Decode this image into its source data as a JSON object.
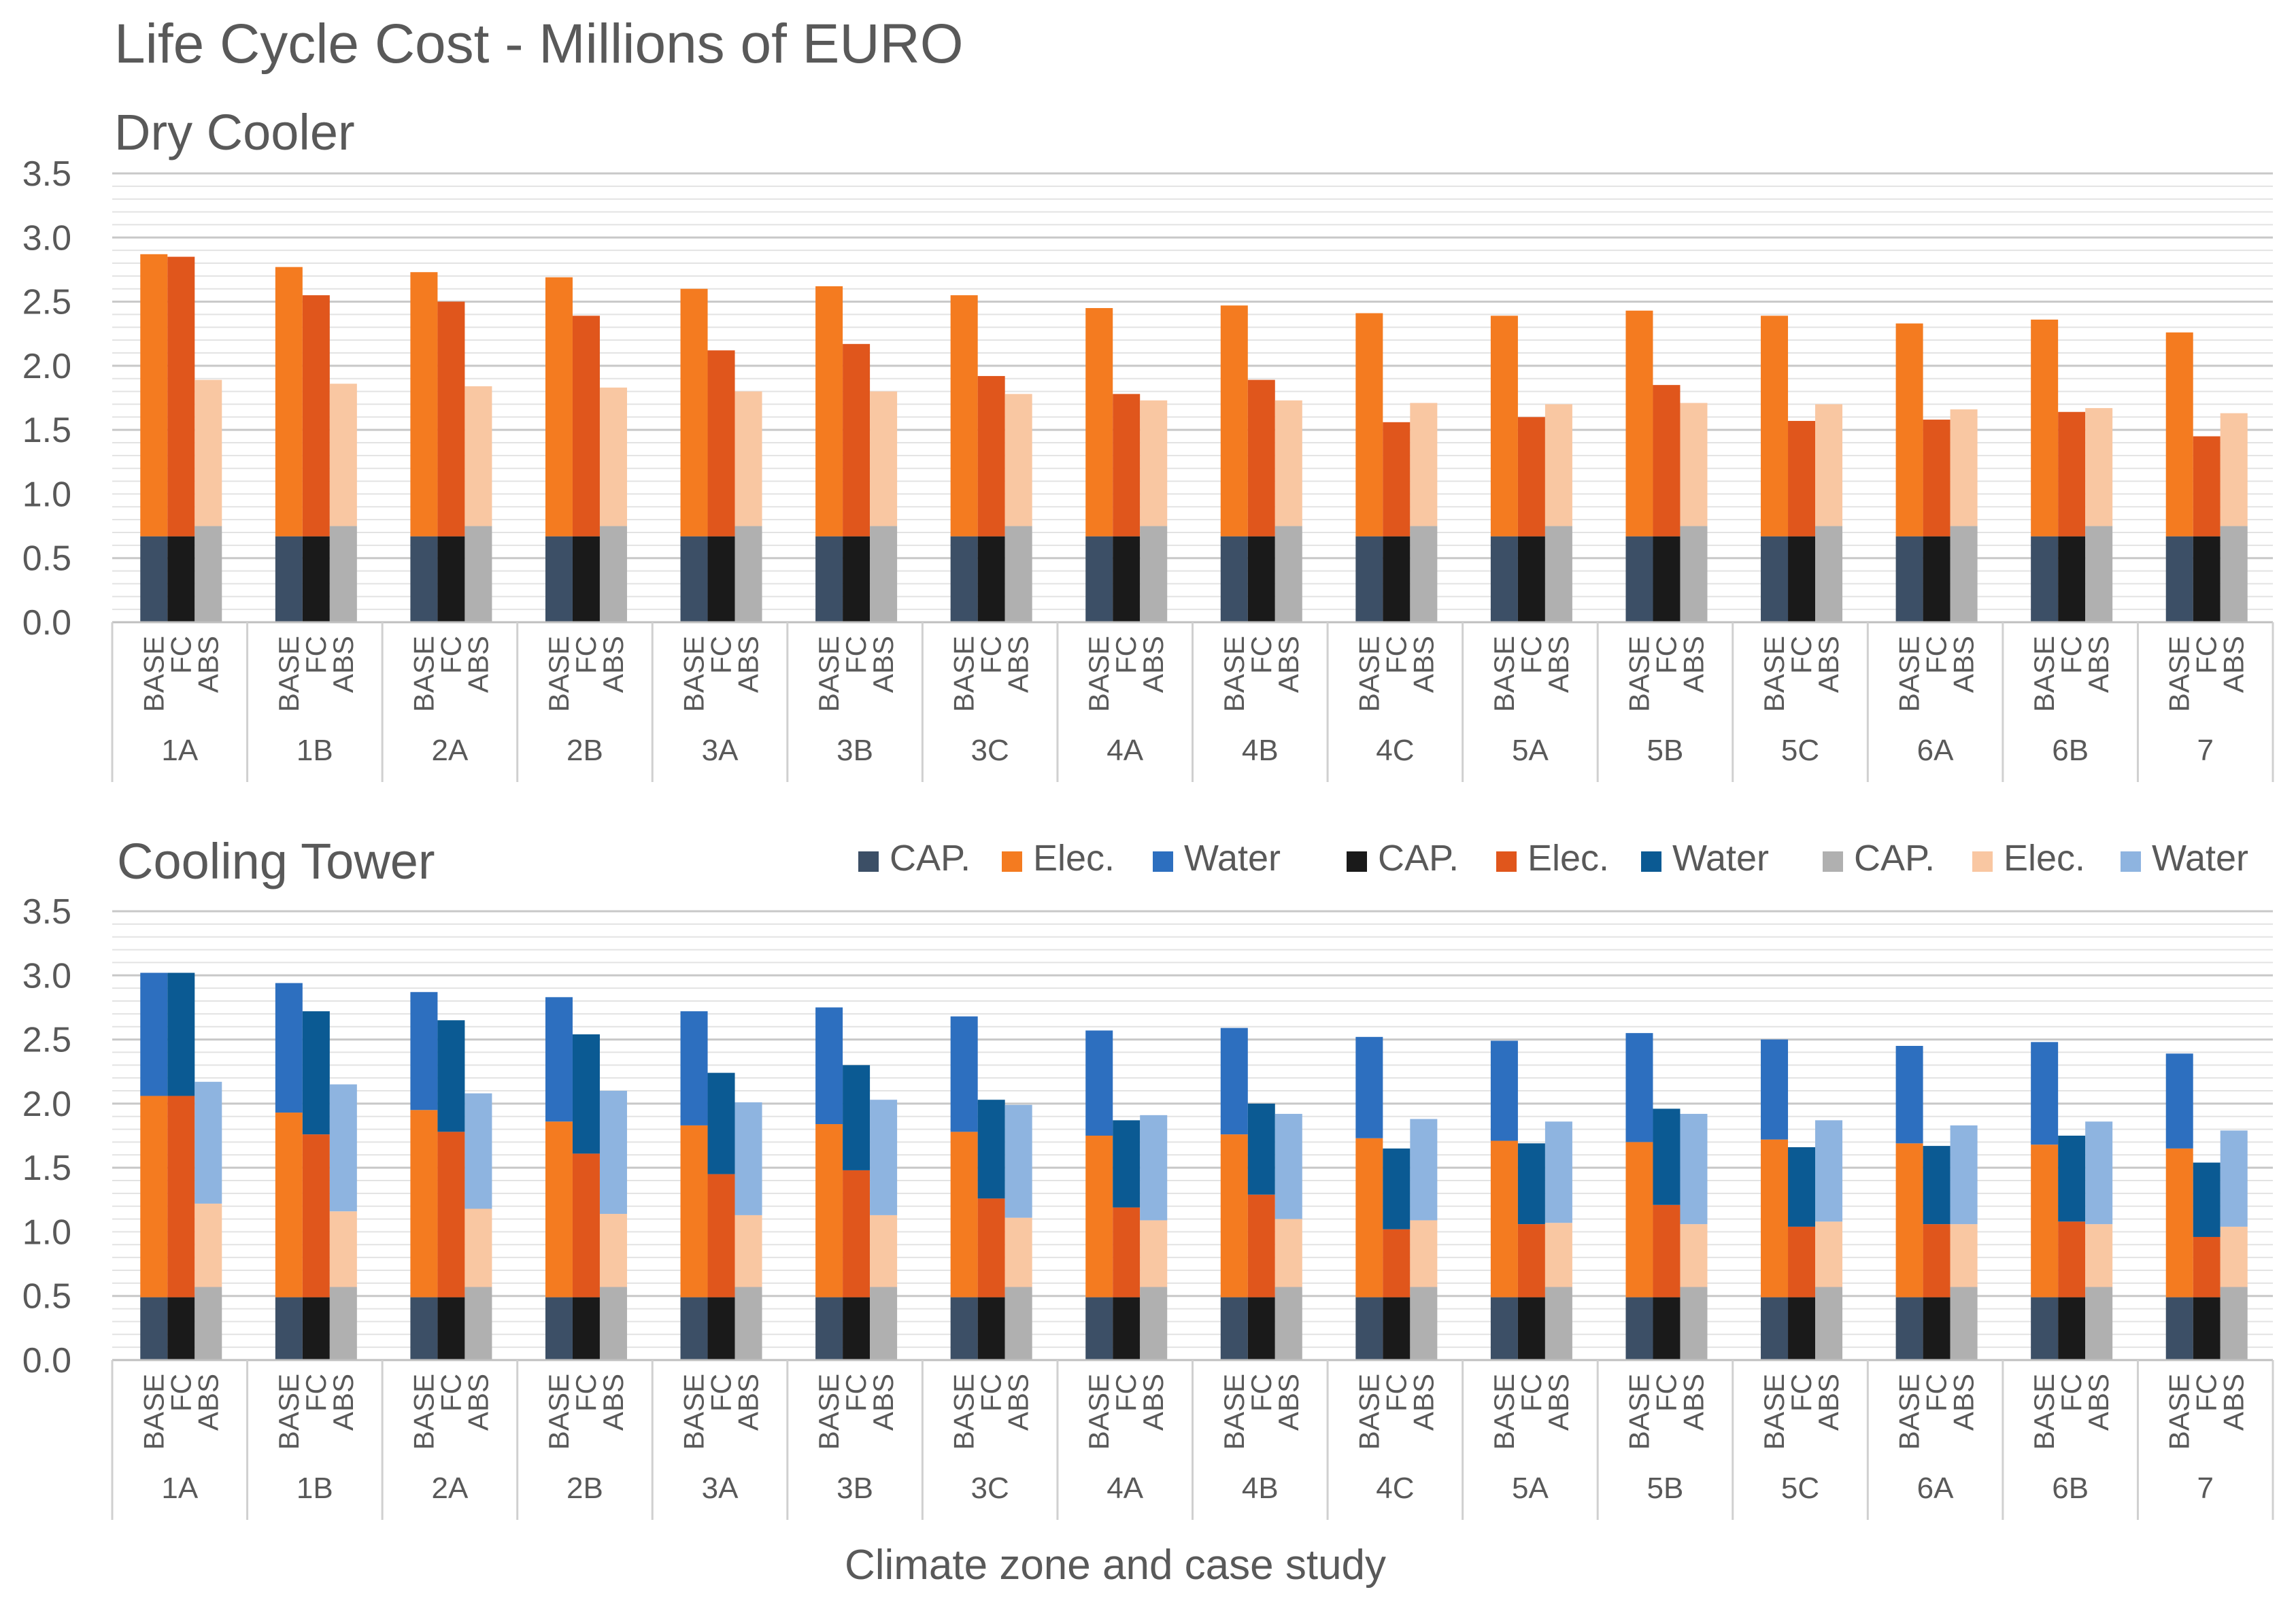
{
  "chart_data": {
    "type": "bar",
    "title": "Life Cycle Cost - Millions of EURO",
    "xlabel": "Climate zone and case study",
    "ylabel": "",
    "ylim": [
      0,
      3.5
    ],
    "y_ticks": [
      "0.0",
      "0.5",
      "1.0",
      "1.5",
      "2.0",
      "2.5",
      "3.0",
      "3.5"
    ],
    "grid": true,
    "zones": [
      "1A",
      "1B",
      "2A",
      "2B",
      "3A",
      "3B",
      "3C",
      "4A",
      "4B",
      "4C",
      "5A",
      "5B",
      "5C",
      "6A",
      "6B",
      "7"
    ],
    "cases": [
      "BASE",
      "FC",
      "ABS"
    ],
    "legend": {
      "placement": "top-right",
      "entries": [
        {
          "label": "CAP.",
          "color": "#3c4f66"
        },
        {
          "label": "Elec.",
          "color": "#f47b20"
        },
        {
          "label": "Water",
          "color": "#2d6fbf"
        },
        {
          "label": "CAP.",
          "color": "#1a1a1a"
        },
        {
          "label": "Elec.",
          "color": "#e0561c"
        },
        {
          "label": "Water",
          "color": "#0b5a93"
        },
        {
          "label": "CAP.",
          "color": "#b0b0b0"
        },
        {
          "label": "Elec.",
          "color": "#f9c7a2"
        },
        {
          "label": "Water",
          "color": "#8eb4e0"
        }
      ]
    },
    "colors": {
      "BASE": {
        "CAP.": "#3c4f66",
        "Elec.": "#f47b20",
        "Water": "#2d6fbf"
      },
      "FC": {
        "CAP.": "#1a1a1a",
        "Elec.": "#e0561c",
        "Water": "#0b5a93"
      },
      "ABS": {
        "CAP.": "#b0b0b0",
        "Elec.": "#f9c7a2",
        "Water": "#8eb4e0"
      }
    },
    "panels": [
      {
        "subtitle": "Dry Cooler",
        "series": [
          {
            "case": "BASE",
            "component": "CAP.",
            "values": [
              0.67,
              0.67,
              0.67,
              0.67,
              0.67,
              0.67,
              0.67,
              0.67,
              0.67,
              0.67,
              0.67,
              0.67,
              0.67,
              0.67,
              0.67,
              0.67
            ]
          },
          {
            "case": "BASE",
            "component": "Elec.",
            "values": [
              2.2,
              2.1,
              2.06,
              2.02,
              1.93,
              1.95,
              1.88,
              1.78,
              1.8,
              1.74,
              1.72,
              1.76,
              1.72,
              1.66,
              1.69,
              1.59
            ]
          },
          {
            "case": "FC",
            "component": "CAP.",
            "values": [
              0.67,
              0.67,
              0.67,
              0.67,
              0.67,
              0.67,
              0.67,
              0.67,
              0.67,
              0.67,
              0.67,
              0.67,
              0.67,
              0.67,
              0.67,
              0.67
            ]
          },
          {
            "case": "FC",
            "component": "Elec.",
            "values": [
              2.18,
              1.88,
              1.83,
              1.72,
              1.45,
              1.5,
              1.25,
              1.11,
              1.22,
              0.89,
              0.93,
              1.18,
              0.9,
              0.91,
              0.97,
              0.78
            ]
          },
          {
            "case": "ABS",
            "component": "CAP.",
            "values": [
              0.75,
              0.75,
              0.75,
              0.75,
              0.75,
              0.75,
              0.75,
              0.75,
              0.75,
              0.75,
              0.75,
              0.75,
              0.75,
              0.75,
              0.75,
              0.75
            ]
          },
          {
            "case": "ABS",
            "component": "Elec.",
            "values": [
              1.14,
              1.11,
              1.09,
              1.08,
              1.05,
              1.05,
              1.03,
              0.98,
              0.98,
              0.96,
              0.95,
              0.96,
              0.95,
              0.91,
              0.92,
              0.88
            ]
          }
        ]
      },
      {
        "subtitle": "Cooling Tower",
        "series": [
          {
            "case": "BASE",
            "component": "CAP.",
            "values": [
              0.49,
              0.49,
              0.49,
              0.49,
              0.49,
              0.49,
              0.49,
              0.49,
              0.49,
              0.49,
              0.49,
              0.49,
              0.49,
              0.49,
              0.49,
              0.49
            ]
          },
          {
            "case": "BASE",
            "component": "Elec.",
            "values": [
              1.57,
              1.44,
              1.46,
              1.37,
              1.34,
              1.35,
              1.29,
              1.26,
              1.27,
              1.24,
              1.22,
              1.21,
              1.23,
              1.2,
              1.19,
              1.16
            ]
          },
          {
            "case": "BASE",
            "component": "Water",
            "values": [
              0.96,
              1.01,
              0.92,
              0.97,
              0.89,
              0.91,
              0.9,
              0.82,
              0.83,
              0.79,
              0.78,
              0.85,
              0.78,
              0.76,
              0.8,
              0.74
            ]
          },
          {
            "case": "FC",
            "component": "CAP.",
            "values": [
              0.49,
              0.49,
              0.49,
              0.49,
              0.49,
              0.49,
              0.49,
              0.49,
              0.49,
              0.49,
              0.49,
              0.49,
              0.49,
              0.49,
              0.49,
              0.49
            ]
          },
          {
            "case": "FC",
            "component": "Elec.",
            "values": [
              1.57,
              1.27,
              1.29,
              1.12,
              0.96,
              0.99,
              0.77,
              0.7,
              0.8,
              0.53,
              0.57,
              0.72,
              0.55,
              0.57,
              0.59,
              0.47
            ]
          },
          {
            "case": "FC",
            "component": "Water",
            "values": [
              0.96,
              0.96,
              0.87,
              0.93,
              0.79,
              0.82,
              0.77,
              0.68,
              0.71,
              0.63,
              0.63,
              0.75,
              0.62,
              0.61,
              0.67,
              0.58
            ]
          },
          {
            "case": "ABS",
            "component": "CAP.",
            "values": [
              0.57,
              0.57,
              0.57,
              0.57,
              0.57,
              0.57,
              0.57,
              0.57,
              0.57,
              0.57,
              0.57,
              0.57,
              0.57,
              0.57,
              0.57,
              0.57
            ]
          },
          {
            "case": "ABS",
            "component": "Elec.",
            "values": [
              0.65,
              0.59,
              0.61,
              0.57,
              0.56,
              0.56,
              0.54,
              0.52,
              0.53,
              0.52,
              0.5,
              0.49,
              0.51,
              0.49,
              0.49,
              0.47
            ]
          },
          {
            "case": "ABS",
            "component": "Water",
            "values": [
              0.95,
              0.99,
              0.9,
              0.96,
              0.88,
              0.9,
              0.88,
              0.82,
              0.82,
              0.79,
              0.79,
              0.86,
              0.79,
              0.77,
              0.8,
              0.75
            ]
          }
        ]
      }
    ]
  }
}
